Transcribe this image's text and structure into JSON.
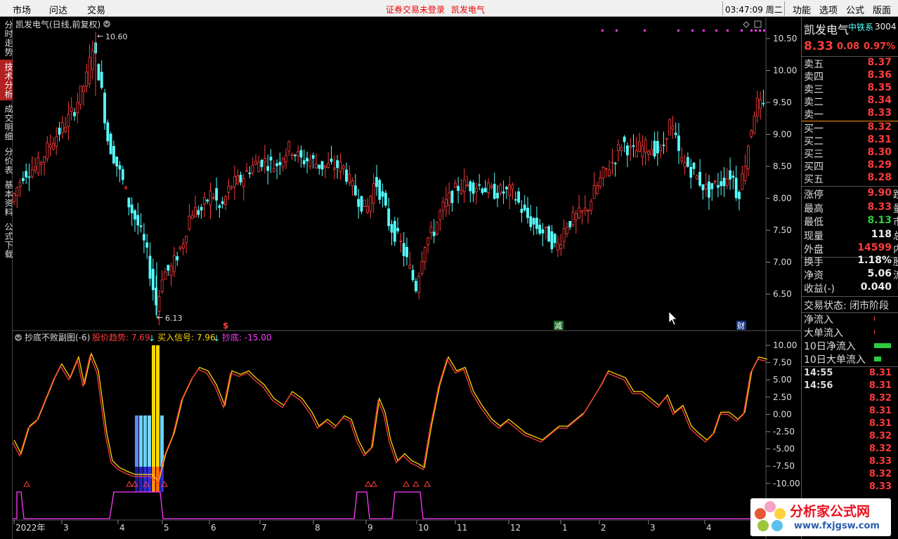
{
  "topbar": {
    "menus": [
      "市场",
      "问达",
      "交易"
    ],
    "notice_status": "证券交易未登录",
    "notice_stock": "凯发电气",
    "clock": "03:47:09 周二",
    "right_menus": [
      "功能",
      "选项",
      "公式",
      "版面"
    ]
  },
  "side_tabs": [
    "分时走势",
    "技术分析",
    "成交明细",
    "分价表",
    "基本资料",
    "公式下载"
  ],
  "main_chart": {
    "title": "凯发电气(日线,前复权)",
    "high_label": "10.60",
    "low_label": "6.13",
    "y_ticks": [
      "10.50",
      "10.00",
      "9.50",
      "9.00",
      "8.50",
      "8.00",
      "7.50",
      "7.00",
      "6.50"
    ],
    "markers": [
      "$",
      "减",
      "财"
    ],
    "colors": {
      "up": "#ff3b3b",
      "down": "#54ffff",
      "bg": "#000000"
    }
  },
  "sub_chart": {
    "title": "抄底不败副图(-6)",
    "trend_label": "股价趋势: 7.69",
    "buy_label": "买入信号: 7.96",
    "bottom_label": "抄底: -15.00",
    "y_ticks": [
      "10.00",
      "7.50",
      "5.00",
      "2.50",
      "0.00",
      "-2.50",
      "-5.00",
      "-7.50",
      "-10.00"
    ]
  },
  "x_axis": [
    "2022年",
    "3",
    "4",
    "5",
    "6",
    "7",
    "8",
    "9",
    "10",
    "11",
    "12",
    "1",
    "2",
    "3",
    "4"
  ],
  "quote": {
    "name": "凯发电气",
    "industry": "中铁系",
    "code": "3004",
    "price": "8.33",
    "change": "0.08",
    "change_pct": "0.97%",
    "sells": [
      {
        "label": "卖五",
        "price": "8.37"
      },
      {
        "label": "卖四",
        "price": "8.36"
      },
      {
        "label": "卖三",
        "price": "8.35"
      },
      {
        "label": "卖二",
        "price": "8.34"
      },
      {
        "label": "卖一",
        "price": "8.33"
      }
    ],
    "buys": [
      {
        "label": "买一",
        "price": "8.32"
      },
      {
        "label": "买二",
        "price": "8.31"
      },
      {
        "label": "买三",
        "price": "8.30"
      },
      {
        "label": "买四",
        "price": "8.29"
      },
      {
        "label": "买五",
        "price": "8.28"
      }
    ],
    "stats": [
      {
        "label": "涨停",
        "value": "9.90",
        "tail": "跌"
      },
      {
        "label": "最高",
        "value": "8.33",
        "tail": "量"
      },
      {
        "label": "最低",
        "value": "8.13",
        "tail": "市"
      },
      {
        "label": "现量",
        "value": "118",
        "tail": "总"
      },
      {
        "label": "外盘",
        "value": "14599",
        "tail": "内"
      }
    ],
    "stats2": [
      {
        "label": "换手",
        "value": "1.18%",
        "tail": "股"
      },
      {
        "label": "净资",
        "value": "5.06",
        "tail": "流"
      },
      {
        "label": "收益(-)",
        "value": "0.040",
        "tail": "P"
      }
    ],
    "trade_status": "交易状态: 闭市阶段",
    "flows": [
      "净流入",
      "大单流入",
      "10日净流入",
      "10日大单流入"
    ],
    "ticks": [
      {
        "time": "14:55",
        "price": "8.31"
      },
      {
        "time": "14:56",
        "price": "8.31"
      },
      {
        "time": "",
        "price": "8.32"
      },
      {
        "time": "",
        "price": "8.31"
      },
      {
        "time": "",
        "price": "8.31"
      },
      {
        "time": "",
        "price": "8.32"
      },
      {
        "time": "",
        "price": "8.32"
      },
      {
        "time": "",
        "price": "8.33"
      },
      {
        "time": "",
        "price": "8.32"
      },
      {
        "time": "",
        "price": "8.33"
      }
    ]
  },
  "logo": {
    "title": "分析家公式网",
    "url": "www.fxjgsw.com"
  }
}
